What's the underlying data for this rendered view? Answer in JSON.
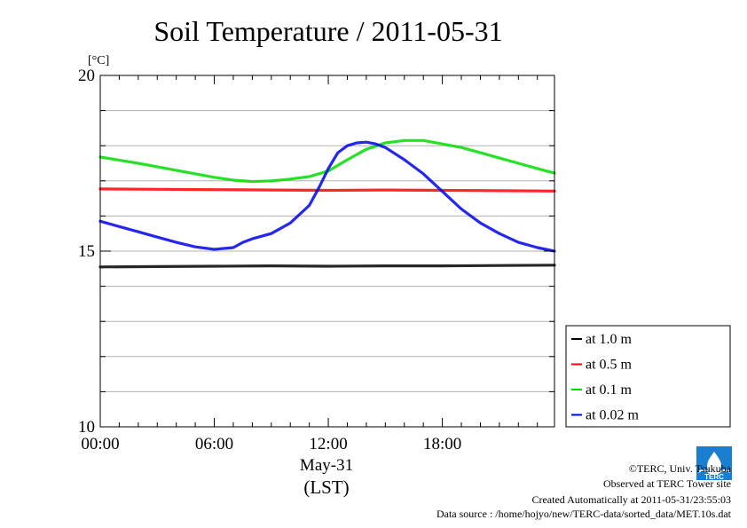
{
  "chart_data": {
    "type": "line",
    "title": "Soil Temperature / 2011-05-31",
    "ylabel": "[°C]",
    "xlabel": "May-31",
    "xlabel2": "(LST)",
    "xlim": [
      0,
      23.9
    ],
    "ylim": [
      10,
      20
    ],
    "x_ticks": [
      {
        "value": 0,
        "label": "00:00"
      },
      {
        "value": 6,
        "label": "06:00"
      },
      {
        "value": 12,
        "label": "12:00"
      },
      {
        "value": 18,
        "label": "18:00"
      }
    ],
    "y_ticks": [
      {
        "value": 10,
        "label": "10"
      },
      {
        "value": 15,
        "label": "15"
      },
      {
        "value": 20,
        "label": "20"
      }
    ],
    "y_minor_step": 1,
    "grid": "horizontal",
    "legend_position": "right",
    "series": [
      {
        "name": "at 1.0 m",
        "color": "#000000",
        "x": [
          0,
          3,
          6,
          9,
          12,
          15,
          18,
          21,
          23.9
        ],
        "y": [
          14.55,
          14.56,
          14.57,
          14.58,
          14.57,
          14.58,
          14.58,
          14.59,
          14.6
        ]
      },
      {
        "name": "at 0.5 m",
        "color": "#ff0000",
        "x": [
          0,
          3,
          6,
          9,
          12,
          15,
          18,
          21,
          23.9
        ],
        "y": [
          16.77,
          16.76,
          16.75,
          16.74,
          16.73,
          16.74,
          16.73,
          16.72,
          16.71
        ]
      },
      {
        "name": "at 0.1 m",
        "color": "#00dd00",
        "x": [
          0,
          2,
          4,
          6,
          7,
          8,
          9,
          10,
          11,
          12,
          13,
          14,
          15,
          16,
          17,
          18,
          19,
          20,
          21,
          22,
          23,
          23.9
        ],
        "y": [
          17.68,
          17.5,
          17.3,
          17.1,
          17.02,
          16.98,
          17.0,
          17.05,
          17.12,
          17.28,
          17.6,
          17.9,
          18.08,
          18.15,
          18.15,
          18.05,
          17.95,
          17.8,
          17.65,
          17.5,
          17.35,
          17.22
        ]
      },
      {
        "name": "at 0.02 m",
        "color": "#0000ee",
        "x": [
          0,
          1,
          2,
          3,
          4,
          5,
          6,
          7,
          7.5,
          8,
          9,
          10,
          11,
          11.5,
          12,
          12.5,
          13,
          13.5,
          14,
          14.5,
          15,
          16,
          17,
          18,
          19,
          20,
          21,
          22,
          23,
          23.9
        ],
        "y": [
          15.85,
          15.7,
          15.55,
          15.4,
          15.25,
          15.12,
          15.05,
          15.1,
          15.25,
          15.35,
          15.5,
          15.8,
          16.3,
          16.8,
          17.35,
          17.8,
          18.0,
          18.08,
          18.1,
          18.05,
          17.95,
          17.6,
          17.2,
          16.7,
          16.2,
          15.8,
          15.5,
          15.25,
          15.1,
          15.0
        ]
      }
    ]
  },
  "credits": {
    "copyright": "©TERC, Univ. Tsukuba",
    "site": "Observed at TERC Tower site",
    "created": "Created Automatically at 2011-05-31/23:55:03",
    "source": "Data source : /home/hojyo/new/TERC-data/sorted_data/MET.10s.dat"
  },
  "logo": {
    "name": "terc-logo",
    "text": "TERC",
    "color": "#1a7fd1"
  }
}
